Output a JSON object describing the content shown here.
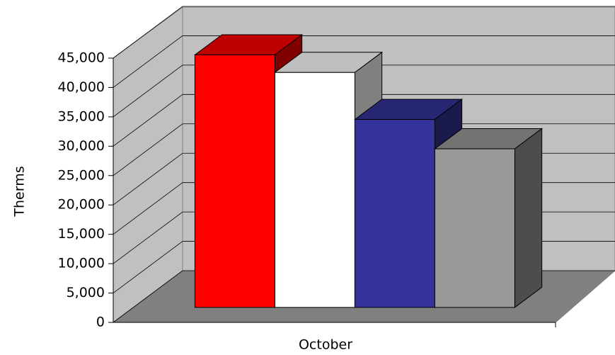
{
  "chart_data": {
    "type": "bar3d",
    "categories": [
      "October"
    ],
    "y_label": "Therms",
    "series": [
      {
        "color": "#ff0000",
        "values": [
          43000
        ]
      },
      {
        "color": "#ffffff",
        "values": [
          40000
        ]
      },
      {
        "color": "#333399",
        "values": [
          32000
        ]
      },
      {
        "color": "#999999",
        "values": [
          27000
        ]
      }
    ],
    "ylim": [
      0,
      45000
    ],
    "yticks": [
      0,
      {
        "value": 5000,
        "label": "5,000"
      },
      {
        "value": 10000,
        "label": "10,000"
      },
      {
        "value": 15000,
        "label": "15,000"
      },
      {
        "value": 20000,
        "label": "20,000"
      },
      {
        "value": 25000,
        "label": "25,000"
      },
      {
        "value": 30000,
        "label": "30,000"
      },
      {
        "value": 35000,
        "label": "35,000"
      },
      {
        "value": 40000,
        "label": "40,000"
      },
      {
        "value": 45000,
        "label": "45,000"
      }
    ],
    "grid": true
  }
}
